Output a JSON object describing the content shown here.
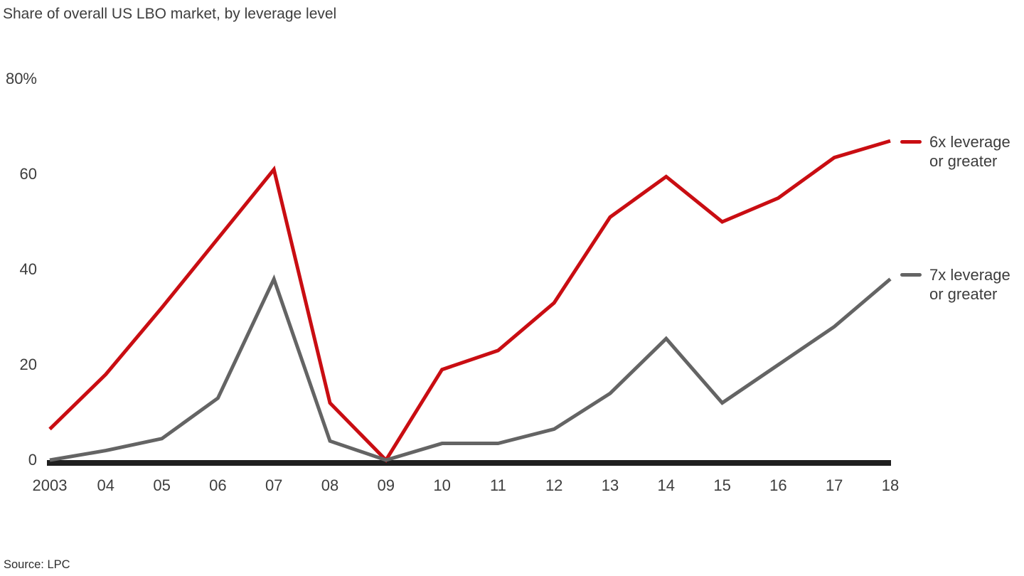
{
  "chart_data": {
    "type": "line",
    "title": "Share of overall US LBO market, by leverage level",
    "x_categories": [
      "2003",
      "04",
      "05",
      "06",
      "07",
      "08",
      "09",
      "10",
      "11",
      "12",
      "13",
      "14",
      "15",
      "16",
      "17",
      "18"
    ],
    "y_ticks": [
      {
        "value": 0,
        "label": "0"
      },
      {
        "value": 20,
        "label": "20"
      },
      {
        "value": 40,
        "label": "40"
      },
      {
        "value": 60,
        "label": "60"
      },
      {
        "value": 80,
        "label": "80%"
      }
    ],
    "ylim": [
      0,
      80
    ],
    "grid": false,
    "legend_position": "right",
    "axis_color": "#1f1f1f",
    "series": [
      {
        "name": "6x leverage or greater",
        "color": "#c90d12",
        "values": [
          6.5,
          18,
          32,
          46.5,
          61,
          12,
          0,
          19,
          23,
          33,
          51,
          59.5,
          50,
          55,
          63.5,
          67
        ]
      },
      {
        "name": "7x leverage or greater",
        "color": "#646464",
        "values": [
          0,
          2,
          4.5,
          13,
          38,
          4,
          0,
          3.5,
          3.5,
          6.5,
          14,
          25.5,
          12,
          20,
          28,
          38
        ]
      }
    ],
    "source": "Source: LPC"
  }
}
